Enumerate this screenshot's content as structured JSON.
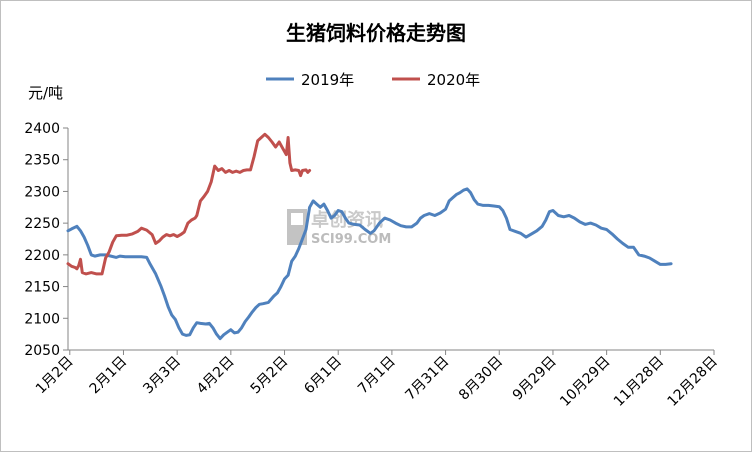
{
  "chart_data": {
    "type": "line",
    "title": "生猪饲料价格走势图",
    "ylabel": "元/吨",
    "xlabel": "",
    "ylim": [
      2050,
      2400
    ],
    "yticks": [
      2050,
      2100,
      2150,
      2200,
      2250,
      2300,
      2350,
      2400
    ],
    "xlim": [
      1,
      362
    ],
    "xtick_labels": [
      "1月2日",
      "2月1日",
      "3月3日",
      "4月2日",
      "5月2日",
      "6月1日",
      "7月1日",
      "7月31日",
      "8月30日",
      "9月29日",
      "10月29日",
      "11月28日",
      "12月28日"
    ],
    "xtick_days": [
      2,
      32,
      62,
      92,
      122,
      152,
      182,
      212,
      242,
      272,
      302,
      332,
      362
    ],
    "grid": false,
    "legend": "top",
    "watermark": "卓创资讯 SCI99.COM",
    "series": [
      {
        "name": "2019年",
        "color": "#4f81bd",
        "points": [
          [
            1,
            2238
          ],
          [
            3,
            2241
          ],
          [
            6,
            2245
          ],
          [
            8,
            2238
          ],
          [
            10,
            2228
          ],
          [
            12,
            2215
          ],
          [
            14,
            2200
          ],
          [
            16,
            2198
          ],
          [
            19,
            2200
          ],
          [
            22,
            2200
          ],
          [
            25,
            2198
          ],
          [
            28,
            2196
          ],
          [
            30,
            2198
          ],
          [
            33,
            2197
          ],
          [
            36,
            2197
          ],
          [
            39,
            2197
          ],
          [
            42,
            2197
          ],
          [
            45,
            2196
          ],
          [
            47,
            2185
          ],
          [
            50,
            2170
          ],
          [
            53,
            2150
          ],
          [
            55,
            2135
          ],
          [
            57,
            2118
          ],
          [
            59,
            2105
          ],
          [
            61,
            2098
          ],
          [
            63,
            2085
          ],
          [
            65,
            2075
          ],
          [
            67,
            2073
          ],
          [
            69,
            2074
          ],
          [
            71,
            2085
          ],
          [
            73,
            2093
          ],
          [
            75,
            2092
          ],
          [
            78,
            2091
          ],
          [
            80,
            2092
          ],
          [
            82,
            2085
          ],
          [
            84,
            2075
          ],
          [
            86,
            2068
          ],
          [
            88,
            2074
          ],
          [
            90,
            2078
          ],
          [
            92,
            2082
          ],
          [
            94,
            2077
          ],
          [
            96,
            2078
          ],
          [
            98,
            2085
          ],
          [
            100,
            2095
          ],
          [
            102,
            2102
          ],
          [
            104,
            2110
          ],
          [
            106,
            2117
          ],
          [
            108,
            2122
          ],
          [
            110,
            2123
          ],
          [
            113,
            2125
          ],
          [
            116,
            2135
          ],
          [
            118,
            2140
          ],
          [
            120,
            2150
          ],
          [
            122,
            2162
          ],
          [
            124,
            2168
          ],
          [
            126,
            2190
          ],
          [
            128,
            2198
          ],
          [
            130,
            2210
          ],
          [
            132,
            2225
          ],
          [
            134,
            2240
          ],
          [
            136,
            2275
          ],
          [
            138,
            2285
          ],
          [
            140,
            2280
          ],
          [
            142,
            2275
          ],
          [
            144,
            2280
          ],
          [
            146,
            2270
          ],
          [
            148,
            2258
          ],
          [
            150,
            2262
          ],
          [
            152,
            2270
          ],
          [
            154,
            2268
          ],
          [
            156,
            2258
          ],
          [
            158,
            2250
          ],
          [
            161,
            2248
          ],
          [
            164,
            2247
          ],
          [
            167,
            2240
          ],
          [
            170,
            2234
          ],
          [
            172,
            2238
          ],
          [
            175,
            2250
          ],
          [
            178,
            2258
          ],
          [
            181,
            2255
          ],
          [
            184,
            2250
          ],
          [
            187,
            2246
          ],
          [
            190,
            2244
          ],
          [
            193,
            2244
          ],
          [
            196,
            2250
          ],
          [
            198,
            2258
          ],
          [
            200,
            2262
          ],
          [
            203,
            2265
          ],
          [
            206,
            2262
          ],
          [
            209,
            2266
          ],
          [
            212,
            2272
          ],
          [
            214,
            2285
          ],
          [
            216,
            2290
          ],
          [
            218,
            2295
          ],
          [
            220,
            2298
          ],
          [
            222,
            2302
          ],
          [
            224,
            2304
          ],
          [
            226,
            2298
          ],
          [
            228,
            2287
          ],
          [
            230,
            2280
          ],
          [
            233,
            2278
          ],
          [
            236,
            2278
          ],
          [
            239,
            2277
          ],
          [
            242,
            2276
          ],
          [
            244,
            2270
          ],
          [
            246,
            2258
          ],
          [
            248,
            2240
          ],
          [
            251,
            2237
          ],
          [
            254,
            2234
          ],
          [
            257,
            2228
          ],
          [
            260,
            2233
          ],
          [
            263,
            2238
          ],
          [
            266,
            2245
          ],
          [
            268,
            2255
          ],
          [
            270,
            2268
          ],
          [
            272,
            2270
          ],
          [
            275,
            2262
          ],
          [
            278,
            2260
          ],
          [
            281,
            2262
          ],
          [
            284,
            2258
          ],
          [
            287,
            2252
          ],
          [
            290,
            2248
          ],
          [
            293,
            2250
          ],
          [
            296,
            2247
          ],
          [
            299,
            2242
          ],
          [
            302,
            2240
          ],
          [
            305,
            2233
          ],
          [
            308,
            2225
          ],
          [
            311,
            2218
          ],
          [
            314,
            2212
          ],
          [
            317,
            2212
          ],
          [
            320,
            2200
          ],
          [
            323,
            2198
          ],
          [
            326,
            2195
          ],
          [
            329,
            2190
          ],
          [
            332,
            2185
          ],
          [
            335,
            2185
          ],
          [
            338,
            2186
          ]
        ]
      },
      {
        "name": "2020年",
        "color": "#c0504d",
        "points": [
          [
            1,
            2186
          ],
          [
            3,
            2182
          ],
          [
            5,
            2180
          ],
          [
            6,
            2178
          ],
          [
            7,
            2183
          ],
          [
            8,
            2193
          ],
          [
            9,
            2172
          ],
          [
            11,
            2170
          ],
          [
            14,
            2172
          ],
          [
            17,
            2170
          ],
          [
            20,
            2170
          ],
          [
            22,
            2195
          ],
          [
            24,
            2205
          ],
          [
            26,
            2220
          ],
          [
            28,
            2230
          ],
          [
            31,
            2231
          ],
          [
            34,
            2231
          ],
          [
            37,
            2233
          ],
          [
            40,
            2237
          ],
          [
            42,
            2242
          ],
          [
            45,
            2239
          ],
          [
            48,
            2232
          ],
          [
            50,
            2218
          ],
          [
            52,
            2222
          ],
          [
            54,
            2228
          ],
          [
            56,
            2232
          ],
          [
            58,
            2230
          ],
          [
            60,
            2232
          ],
          [
            62,
            2229
          ],
          [
            64,
            2232
          ],
          [
            66,
            2236
          ],
          [
            68,
            2250
          ],
          [
            70,
            2255
          ],
          [
            72,
            2258
          ],
          [
            73,
            2262
          ],
          [
            75,
            2285
          ],
          [
            77,
            2292
          ],
          [
            79,
            2300
          ],
          [
            81,
            2315
          ],
          [
            83,
            2340
          ],
          [
            85,
            2333
          ],
          [
            87,
            2336
          ],
          [
            89,
            2330
          ],
          [
            91,
            2333
          ],
          [
            93,
            2330
          ],
          [
            95,
            2332
          ],
          [
            97,
            2330
          ],
          [
            99,
            2333
          ],
          [
            101,
            2334
          ],
          [
            103,
            2334
          ],
          [
            105,
            2355
          ],
          [
            107,
            2380
          ],
          [
            109,
            2385
          ],
          [
            111,
            2390
          ],
          [
            113,
            2385
          ],
          [
            115,
            2378
          ],
          [
            117,
            2370
          ],
          [
            119,
            2378
          ],
          [
            121,
            2368
          ],
          [
            123,
            2358
          ],
          [
            124,
            2385
          ],
          [
            125,
            2345
          ],
          [
            126,
            2333
          ],
          [
            128,
            2334
          ],
          [
            130,
            2333
          ],
          [
            131,
            2325
          ],
          [
            132,
            2333
          ],
          [
            134,
            2334
          ],
          [
            135,
            2330
          ],
          [
            136,
            2333
          ]
        ]
      }
    ]
  }
}
